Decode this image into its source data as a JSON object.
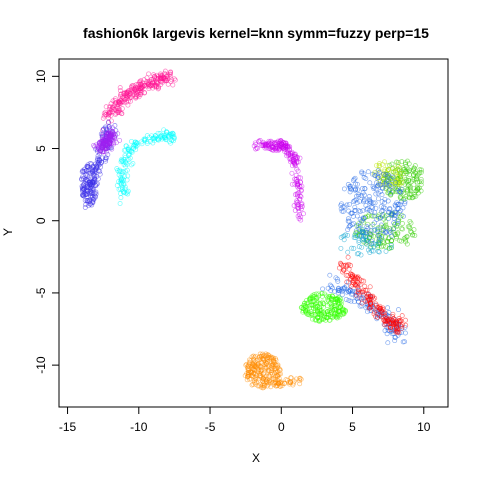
{
  "chart_data": {
    "type": "scatter",
    "title": "fashion6k largevis kernel=knn symm=fuzzy perp=15",
    "xlabel": "X",
    "ylabel": "Y",
    "xlim": [
      -15.6,
      11.7
    ],
    "ylim": [
      -12.9,
      11.2
    ],
    "x_ticks": [
      -15,
      -10,
      -5,
      0,
      5,
      10
    ],
    "y_ticks": [
      -10,
      -5,
      0,
      5,
      10
    ],
    "grid": false,
    "legend": "none",
    "marker": "open-circle",
    "clusters": [
      {
        "color": "#ff1493",
        "count": 260,
        "shape": "line",
        "points": [
          [
            -12.3,
            7.2
          ],
          [
            -11.0,
            8.5
          ],
          [
            -9.5,
            9.4
          ],
          [
            -7.8,
            10.0
          ]
        ],
        "spread": 0.45
      },
      {
        "color": "#3a2ee8",
        "count": 140,
        "shape": "line",
        "points": [
          [
            -13.6,
            1.5
          ],
          [
            -13.0,
            3.5
          ],
          [
            -12.3,
            5.3
          ],
          [
            -12.1,
            6.5
          ]
        ],
        "spread": 0.45
      },
      {
        "color": "#3a2ee8",
        "count": 110,
        "shape": "blob",
        "center": [
          -13.5,
          2.5
        ],
        "radius": [
          0.6,
          1.5
        ]
      },
      {
        "color": "#00ffff",
        "count": 160,
        "shape": "line",
        "points": [
          [
            -11.0,
            1.5
          ],
          [
            -11.2,
            3.5
          ],
          [
            -10.4,
            5.2
          ],
          [
            -8.6,
            5.7
          ],
          [
            -7.6,
            5.9
          ]
        ],
        "spread": 0.35
      },
      {
        "color": "#a020f0",
        "count": 130,
        "shape": "line",
        "points": [
          [
            -11.8,
            6.0
          ],
          [
            -12.6,
            5.0
          ]
        ],
        "spread": 0.4
      },
      {
        "color": "#cc00ee",
        "count": 150,
        "shape": "line",
        "points": [
          [
            -1.8,
            5.2
          ],
          [
            0.2,
            5.3
          ],
          [
            1.0,
            4.2
          ],
          [
            1.2,
            2.2
          ],
          [
            1.4,
            0.2
          ]
        ],
        "spread": 0.3
      },
      {
        "color": "#cc00ee",
        "count": 60,
        "shape": "blob",
        "center": [
          -0.4,
          5.2
        ],
        "radius": [
          1.0,
          0.35
        ]
      },
      {
        "color": "#33cc00",
        "count": 150,
        "shape": "blob",
        "center": [
          8.6,
          2.8
        ],
        "radius": [
          1.5,
          1.4
        ]
      },
      {
        "color": "#33cc00",
        "count": 130,
        "shape": "blob",
        "center": [
          7.3,
          -0.7
        ],
        "radius": [
          2.2,
          1.3
        ]
      },
      {
        "color": "#b8e600",
        "count": 60,
        "shape": "blob",
        "center": [
          7.5,
          3.2
        ],
        "radius": [
          1.2,
          1.0
        ]
      },
      {
        "color": "#1e64e6",
        "count": 220,
        "shape": "blob",
        "center": [
          6.4,
          1.0
        ],
        "radius": [
          2.3,
          2.6
        ]
      },
      {
        "color": "#00a0d0",
        "count": 50,
        "shape": "blob",
        "center": [
          6.0,
          -1.5
        ],
        "radius": [
          2.0,
          1.0
        ]
      },
      {
        "color": "#33ff00",
        "count": 220,
        "shape": "blob",
        "center": [
          3.0,
          -6.0
        ],
        "radius": [
          1.6,
          1.0
        ]
      },
      {
        "color": "#1e64e6",
        "count": 140,
        "shape": "line",
        "points": [
          [
            3.5,
            -4.5
          ],
          [
            5.5,
            -5.2
          ],
          [
            7.5,
            -6.8
          ],
          [
            8.3,
            -8.0
          ]
        ],
        "spread": 0.55
      },
      {
        "color": "#ff0000",
        "count": 180,
        "shape": "line",
        "points": [
          [
            4.3,
            -3.0
          ],
          [
            5.5,
            -4.6
          ],
          [
            6.6,
            -6.0
          ],
          [
            7.8,
            -7.2
          ],
          [
            8.5,
            -7.3
          ]
        ],
        "spread": 0.45
      },
      {
        "color": "#ff8c00",
        "count": 230,
        "shape": "blob",
        "center": [
          -1.3,
          -10.4
        ],
        "radius": [
          1.3,
          1.2
        ]
      },
      {
        "color": "#ff8c00",
        "count": 40,
        "shape": "line",
        "points": [
          [
            -0.6,
            -11.4
          ],
          [
            1.3,
            -11.0
          ]
        ],
        "spread": 0.25
      }
    ]
  }
}
